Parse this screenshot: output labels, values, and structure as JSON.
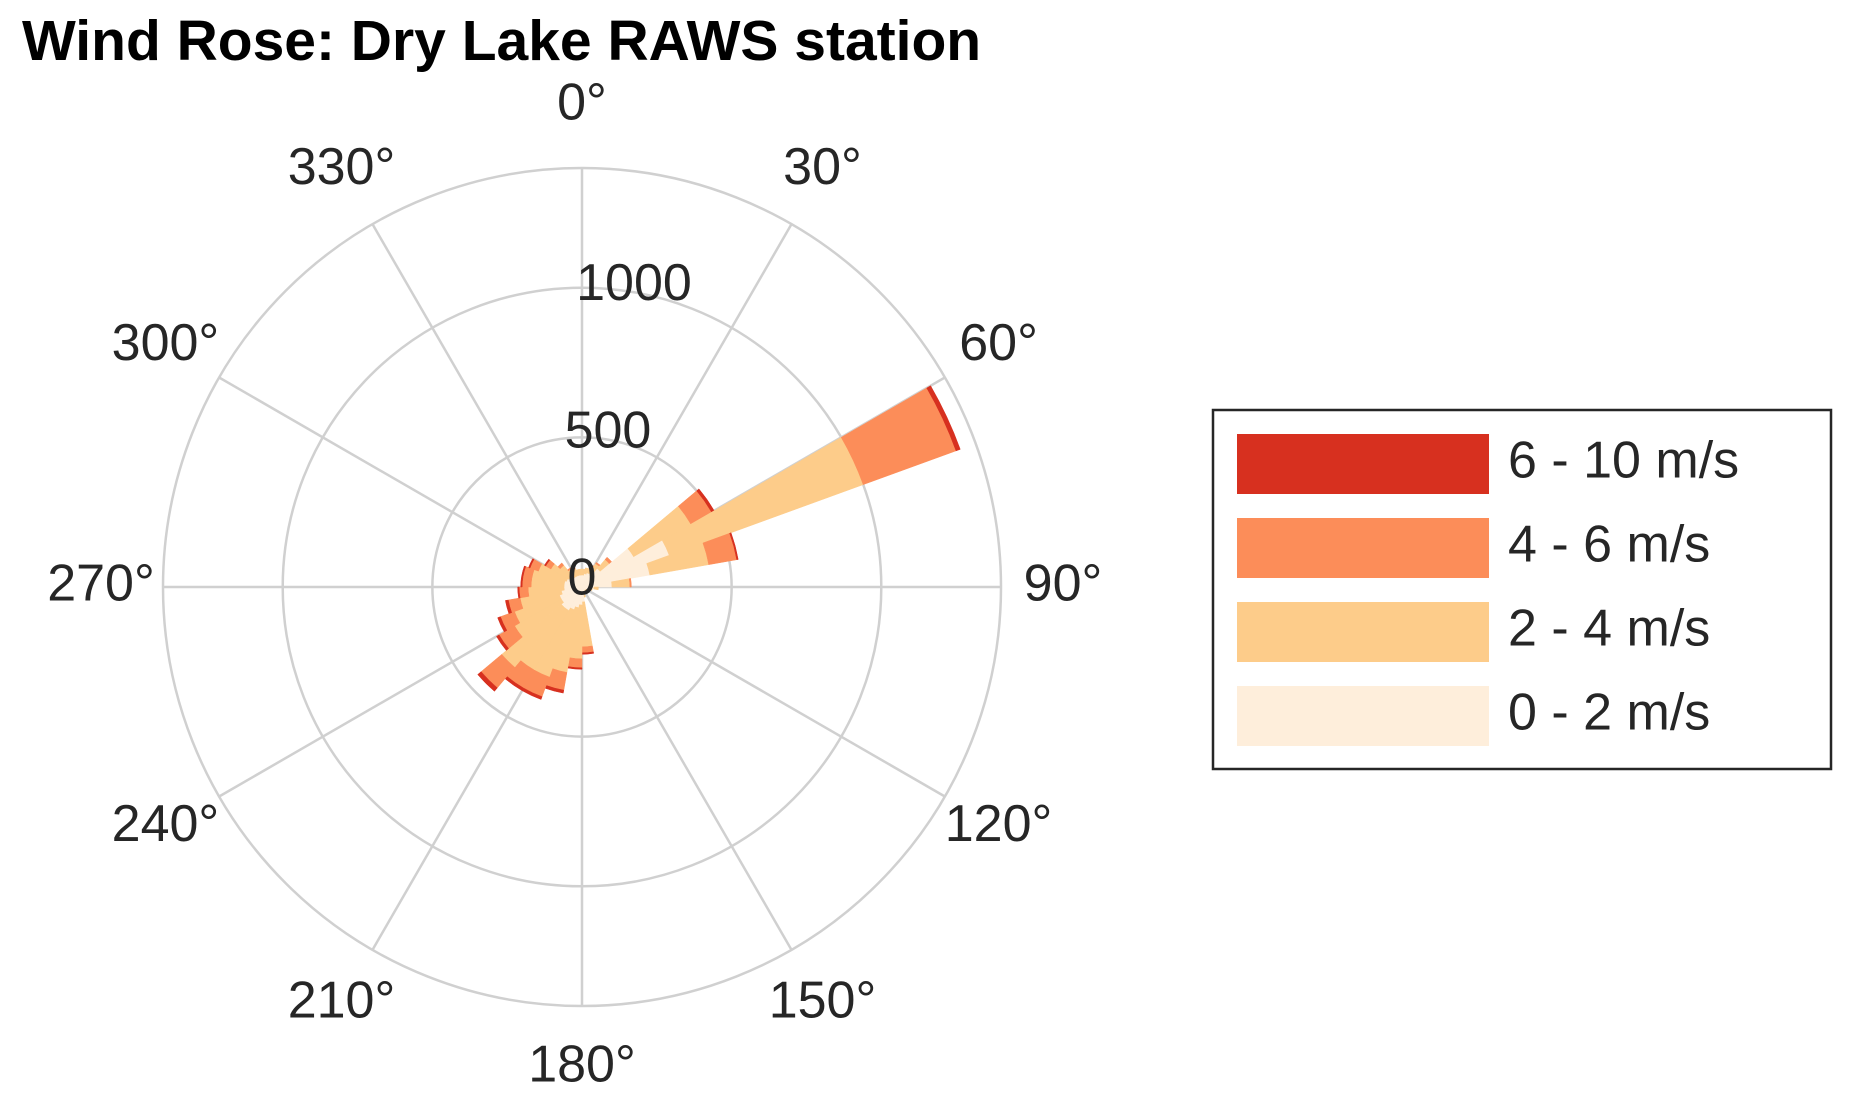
{
  "chart_data": {
    "type": "windrose",
    "title": "Wind Rose: Dry Lake RAWS station",
    "directions": [
      5,
      15,
      25,
      35,
      45,
      55,
      65,
      75,
      85,
      95,
      105,
      115,
      125,
      135,
      145,
      155,
      165,
      175,
      185,
      195,
      205,
      215,
      225,
      235,
      245,
      255,
      265,
      275,
      285,
      295,
      305,
      315,
      325,
      335,
      345,
      355
    ],
    "series": [
      {
        "name": "0 - 2 m/s",
        "color": "#feeedb",
        "values": [
          40,
          45,
          50,
          60,
          80,
          200,
          310,
          230,
          100,
          40,
          25,
          20,
          15,
          15,
          15,
          20,
          25,
          50,
          60,
          70,
          80,
          90,
          90,
          80,
          80,
          70,
          60,
          60,
          60,
          55,
          50,
          45,
          40,
          40,
          40,
          40
        ]
      },
      {
        "name": "2 - 4 m/s",
        "color": "#fdcc8a",
        "values": [
          20,
          20,
          25,
          30,
          40,
          220,
          690,
          200,
          60,
          15,
          10,
          5,
          5,
          5,
          5,
          5,
          10,
          150,
          180,
          220,
          240,
          230,
          260,
          180,
          160,
          140,
          120,
          110,
          110,
          100,
          70,
          50,
          30,
          25,
          20,
          20
        ]
      },
      {
        "name": "4 - 6 m/s",
        "color": "#fc8d59",
        "values": [
          0,
          0,
          5,
          5,
          10,
          80,
          330,
          95,
          5,
          0,
          0,
          0,
          0,
          0,
          0,
          0,
          0,
          20,
          30,
          60,
          70,
          70,
          90,
          60,
          50,
          40,
          30,
          30,
          30,
          30,
          20,
          10,
          5,
          5,
          0,
          0
        ]
      },
      {
        "name": "6 - 10 m/s",
        "color": "#d7301f",
        "values": [
          0,
          0,
          0,
          0,
          0,
          10,
          15,
          5,
          0,
          0,
          0,
          0,
          0,
          0,
          0,
          0,
          0,
          5,
          5,
          10,
          10,
          10,
          15,
          10,
          10,
          10,
          5,
          5,
          5,
          5,
          5,
          0,
          0,
          0,
          0,
          0
        ]
      }
    ],
    "rlim": [
      0,
      1400
    ],
    "rticks": [
      0,
      500,
      1000
    ],
    "thetaticks": [
      {
        "value": 0,
        "label": "0°"
      },
      {
        "value": 30,
        "label": "30°"
      },
      {
        "value": 60,
        "label": "60°"
      },
      {
        "value": 90,
        "label": "90°"
      },
      {
        "value": 120,
        "label": "120°"
      },
      {
        "value": 150,
        "label": "150°"
      },
      {
        "value": 180,
        "label": "180°"
      },
      {
        "value": 210,
        "label": "210°"
      },
      {
        "value": 240,
        "label": "240°"
      },
      {
        "value": 270,
        "label": "270°"
      },
      {
        "value": 300,
        "label": "300°"
      },
      {
        "value": 330,
        "label": "330°"
      }
    ],
    "direction": "clockwise",
    "zero": "north",
    "grid": true,
    "legend": "right"
  }
}
